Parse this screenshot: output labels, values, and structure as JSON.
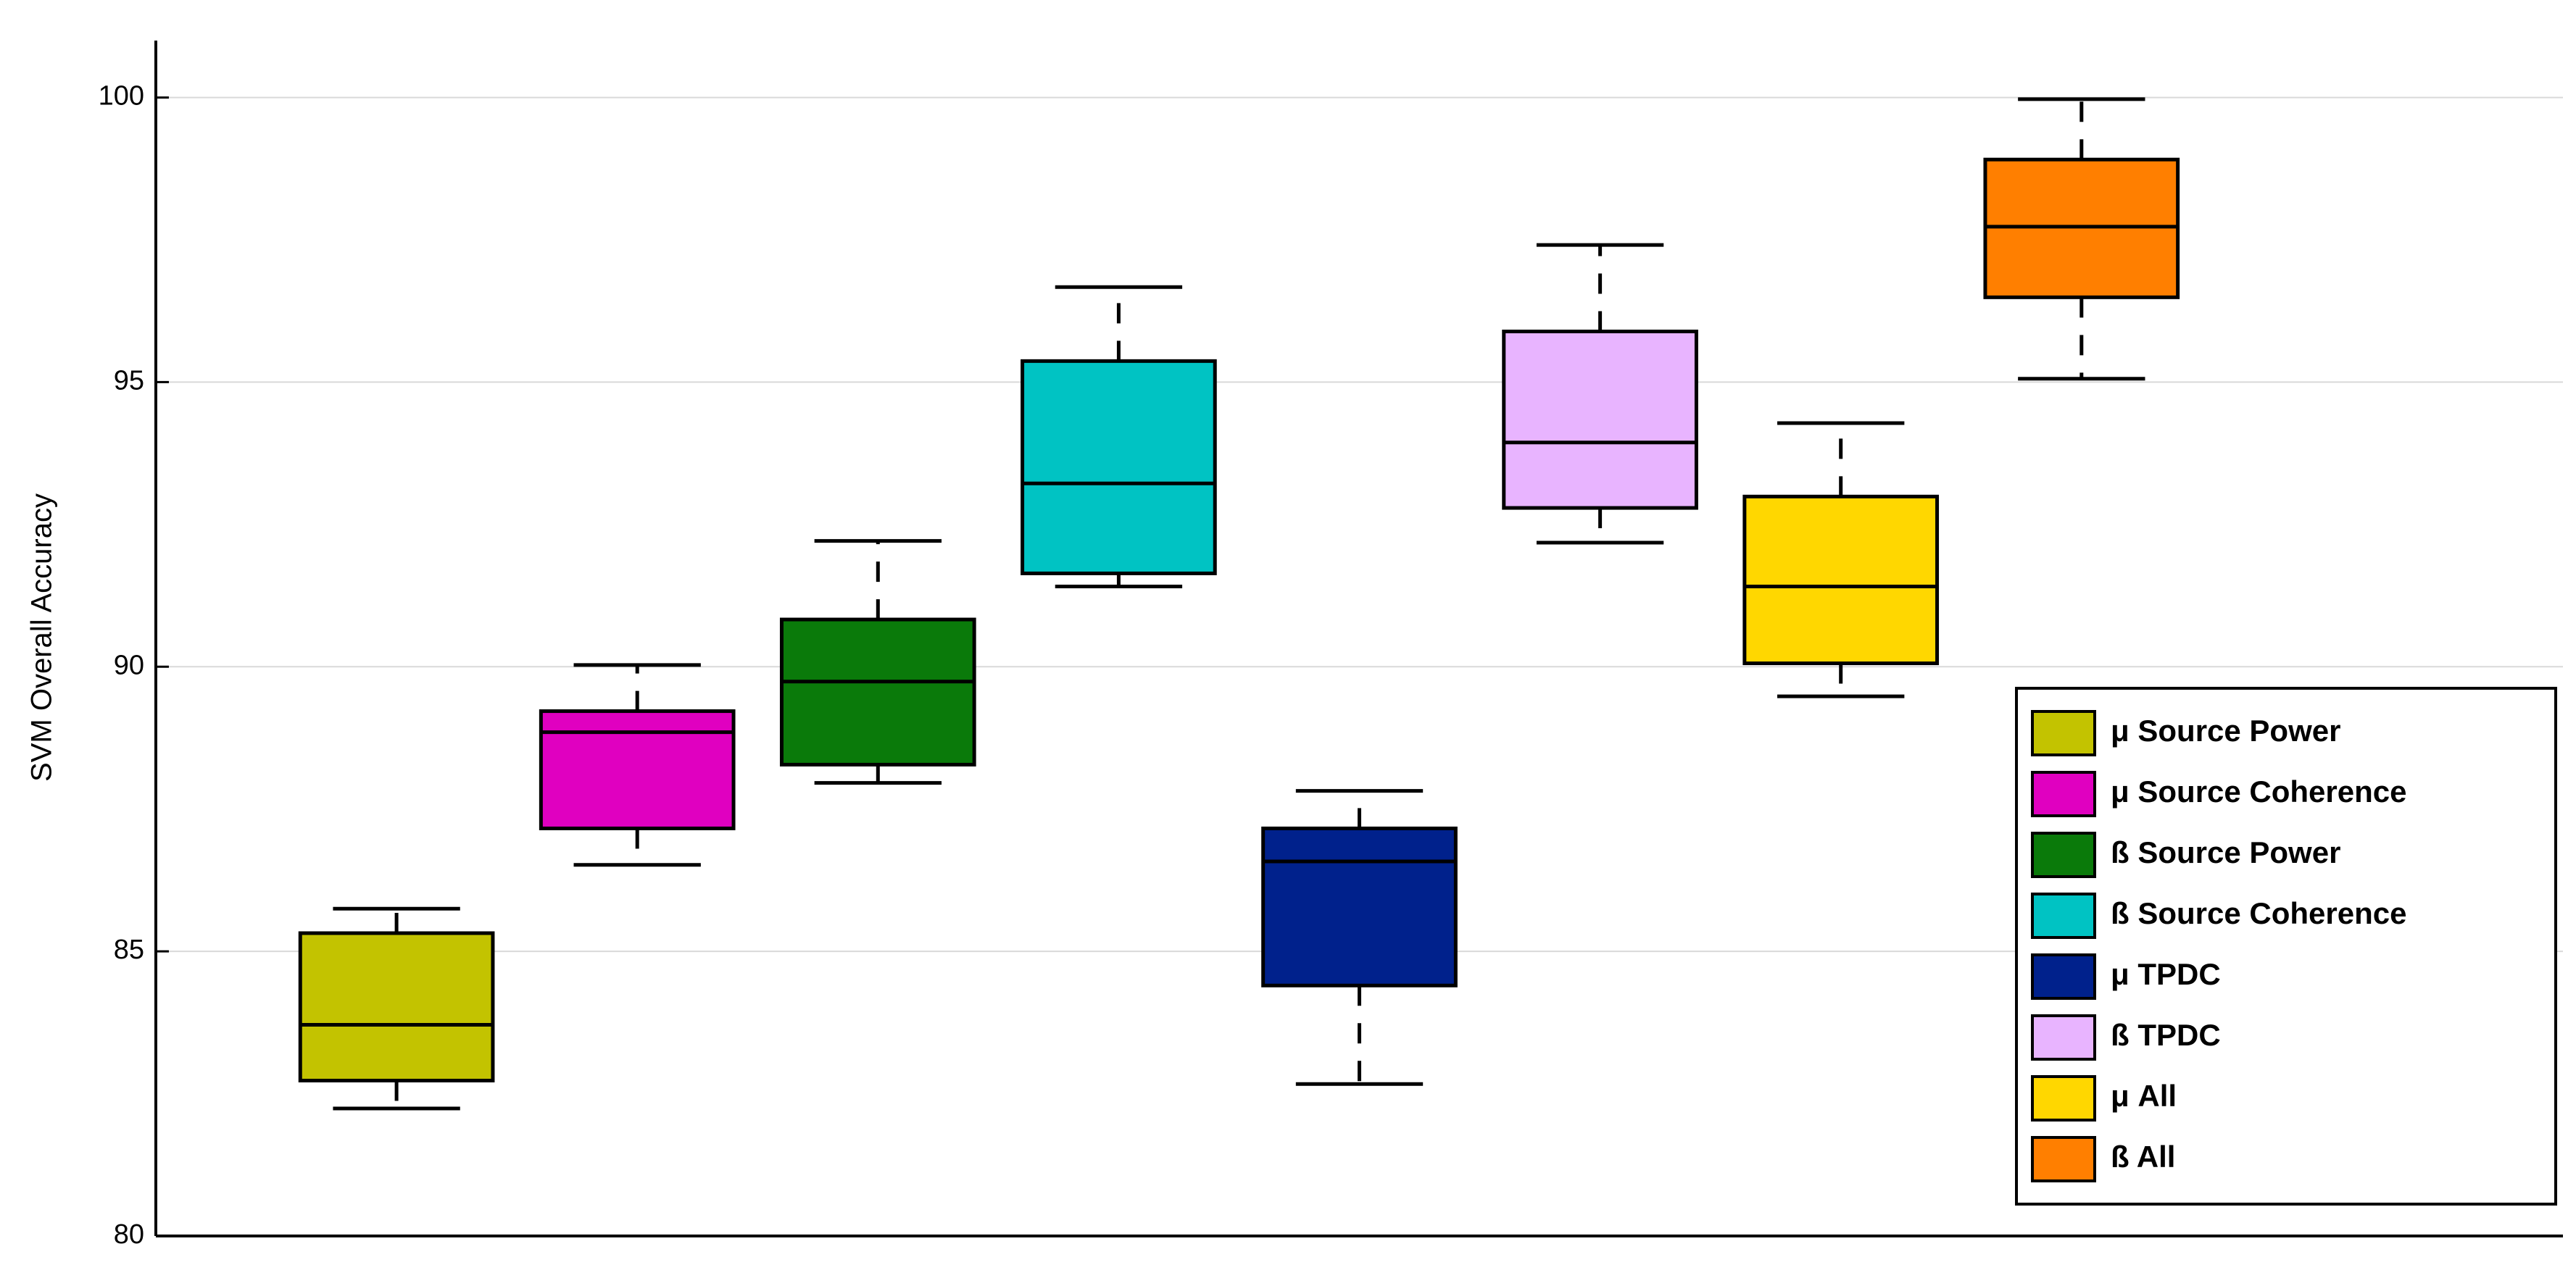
{
  "chart_data": {
    "type": "box",
    "ylabel": "SVM Overall Accuracy",
    "ylim": [
      80,
      101
    ],
    "yticks": [
      80,
      85,
      90,
      95,
      100
    ],
    "grid": true,
    "legend": "lower right",
    "series": [
      {
        "name": "μ Source Power",
        "color": "#c3c300",
        "whisker_low": 82.24,
        "q1": 82.73,
        "median": 83.71,
        "q3": 85.32,
        "whisker_high": 85.75
      },
      {
        "name": "μ Source Coherence",
        "color": "#e000c0",
        "whisker_low": 86.52,
        "q1": 87.16,
        "median": 88.85,
        "q3": 89.22,
        "whisker_high": 90.03
      },
      {
        "name": "ß Source Power",
        "color": "#0a7a0a",
        "whisker_low": 87.96,
        "q1": 88.28,
        "median": 89.74,
        "q3": 90.83,
        "whisker_high": 92.21
      },
      {
        "name": "ß Source Coherence",
        "color": "#00c3c3",
        "whisker_low": 91.41,
        "q1": 91.64,
        "median": 93.22,
        "q3": 95.37,
        "whisker_high": 96.67
      },
      {
        "name": "μ TPDC",
        "color": "#00218c",
        "whisker_low": 82.67,
        "q1": 84.4,
        "median": 86.58,
        "q3": 87.16,
        "whisker_high": 87.82
      },
      {
        "name": "ß TPDC",
        "color": "#e8b4ff",
        "whisker_low": 92.18,
        "q1": 92.79,
        "median": 93.94,
        "q3": 95.89,
        "whisker_high": 97.41
      },
      {
        "name": "μ All",
        "color": "#ffd700",
        "whisker_low": 89.48,
        "q1": 90.06,
        "median": 91.41,
        "q3": 92.99,
        "whisker_high": 94.28
      },
      {
        "name": "ß All",
        "color": "#ff7f00",
        "whisker_low": 95.06,
        "q1": 96.49,
        "median": 97.73,
        "q3": 98.91,
        "whisker_high": 99.97
      }
    ]
  }
}
